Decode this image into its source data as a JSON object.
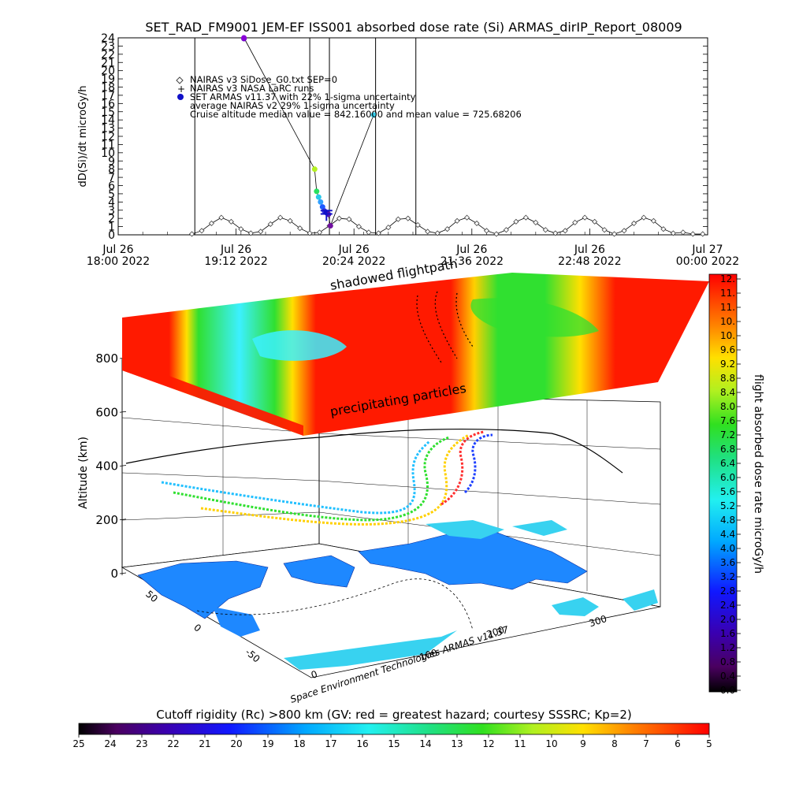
{
  "title": "SET_RAD_FM9001  JEM-EF ISS001 absorbed dose rate (Si) ARMAS_dirIP_Report_08009",
  "colors": {
    "background": "#ffffff",
    "axis": "#000000",
    "slab_top": "#ff1a00",
    "cyan_band": "#3cf0ff",
    "green_band": "#22e030",
    "land": "#1e88ff",
    "ocean_blob": "#38d2f0"
  },
  "chart_data": [
    {
      "type": "line",
      "title": "SET_RAD_FM9001  JEM-EF ISS001 absorbed dose rate (Si) ARMAS_dirIP_Report_08009",
      "ylabel": "dD(Si)/dt microGy/h",
      "xlabel": "",
      "ylim": [
        0,
        24
      ],
      "yticks": [
        0,
        1,
        2,
        3,
        4,
        5,
        6,
        7,
        8,
        9,
        10,
        11,
        12,
        13,
        14,
        15,
        16,
        17,
        18,
        19,
        20,
        21,
        22,
        23,
        24
      ],
      "xtick_labels": [
        {
          "day": "Jul 26",
          "time": "18:00 2022"
        },
        {
          "day": "Jul 26",
          "time": "19:12 2022"
        },
        {
          "day": "Jul 26",
          "time": "20:24 2022"
        },
        {
          "day": "Jul 26",
          "time": "21:36 2022"
        },
        {
          "day": "Jul 26",
          "time": "22:48 2022"
        },
        {
          "day": "Jul 27",
          "time": "00:00 2022"
        }
      ],
      "xlim_hours": [
        18.0,
        24.0
      ],
      "vertical_lines_hours": [
        18.78,
        19.95,
        20.15,
        20.62,
        21.03
      ],
      "legend": [
        {
          "marker": "diamond",
          "text": "NAIRAS v3 SiDose_G0.txt SEP=0"
        },
        {
          "marker": "plus",
          "text": "NAIRAS v3 NASA LaRC runs"
        },
        {
          "marker": "dot",
          "text": "SET ARMAS v11.37 with 22% 1-sigma uncertainty"
        },
        {
          "marker": "none",
          "text": "average NAIRAS v2 29% 1-sigma uncertainty"
        },
        {
          "marker": "none",
          "text": "Cruise altitude median value = 842.16000 and mean value = 725.68206"
        }
      ],
      "series": [
        {
          "name": "NAIRAS v3 SiDose_G0.txt SEP=0",
          "style": "diamonds",
          "x_hours": [
            18.75,
            18.85,
            18.95,
            19.05,
            19.15,
            19.25,
            19.35,
            19.45,
            19.55,
            19.65,
            19.75,
            19.85,
            19.95,
            20.05,
            20.15,
            20.25,
            20.35,
            20.45,
            20.55,
            20.65,
            20.75,
            20.85,
            20.95,
            21.05,
            21.15,
            21.25,
            21.35,
            21.45,
            21.55,
            21.65,
            21.75,
            21.85,
            21.95,
            22.05,
            22.15,
            22.25,
            22.35,
            22.45,
            22.55,
            22.65,
            22.75,
            22.85,
            22.95,
            23.05,
            23.15,
            23.25,
            23.35,
            23.45,
            23.55,
            23.65,
            23.75,
            23.85,
            23.95
          ],
          "values": [
            0.1,
            0.5,
            1.4,
            2.1,
            1.6,
            0.7,
            0.2,
            0.4,
            1.3,
            2.1,
            1.7,
            0.8,
            0.2,
            0.3,
            1.1,
            2.0,
            1.9,
            1.0,
            0.3,
            0.2,
            0.9,
            1.9,
            2.0,
            1.2,
            0.4,
            0.2,
            0.7,
            1.7,
            2.1,
            1.4,
            0.5,
            0.1,
            0.6,
            1.6,
            2.1,
            1.5,
            0.6,
            0.2,
            0.5,
            1.5,
            2.1,
            1.6,
            0.6,
            0.1,
            0.5,
            1.4,
            2.1,
            1.7,
            0.7,
            0.2,
            0.3,
            0.1,
            0.1
          ]
        },
        {
          "name": "SET ARMAS v11.37 with 22% 1-sigma uncertainty",
          "style": "dots",
          "x_hours": [
            19.28,
            19.28,
            20.0,
            20.02,
            20.04,
            20.06,
            20.08,
            20.1,
            20.12,
            20.14,
            20.16,
            20.6
          ],
          "values": [
            23.9,
            24.0,
            8.0,
            5.3,
            4.6,
            4.0,
            3.4,
            2.9,
            2.7,
            2.5,
            1.1,
            14.6
          ],
          "colors": [
            "#6a00c8",
            "#8a00d8",
            "#b4f020",
            "#28e060",
            "#28c8e8",
            "#30a0ff",
            "#1e5aff",
            "#3030d8",
            "#1010c8",
            "#5010b0",
            "#7010a0",
            "#38d2f0"
          ]
        }
      ]
    },
    {
      "type": "3d-surface",
      "zlabel": "Altitude (km)",
      "zticks": [
        0,
        200,
        400,
        600,
        800
      ],
      "x_axis_ticks": [
        0,
        100,
        200,
        300
      ],
      "y_axis_ticks": [
        -50,
        0,
        50
      ],
      "slab_labels": [
        "shadowed flightpath",
        "precipitating particles"
      ],
      "credit": "Space Environment Technologies ARMAS v11.37"
    },
    {
      "type": "colorbar",
      "orientation": "vertical",
      "label": "flight absorbed dose rate microGy/h",
      "tick_labels": [
        "12.",
        "11.",
        "11.",
        "10.",
        "10.",
        "9.6",
        "9.2",
        "8.8",
        "8.4",
        "8.0",
        "7.6",
        "7.2",
        "6.8",
        "6.4",
        "6.0",
        "5.6",
        "5.2",
        "4.8",
        "4.4",
        "4.0",
        "3.6",
        "3.2",
        "2.8",
        "2.4",
        "2.0",
        "1.6",
        "1.2",
        "0.8",
        "0.4",
        "0.0"
      ]
    },
    {
      "type": "colorbar",
      "orientation": "horizontal",
      "label": "Cutoff rigidity (Rc) >800 km (GV: red = greatest hazard; courtesy SSSRC; Kp=2)",
      "tick_labels": [
        "25",
        "24",
        "23",
        "22",
        "21",
        "20",
        "19",
        "18",
        "17",
        "16",
        "15",
        "14",
        "13",
        "12",
        "11",
        "10",
        "9",
        "8",
        "7",
        "6",
        "5"
      ]
    }
  ]
}
